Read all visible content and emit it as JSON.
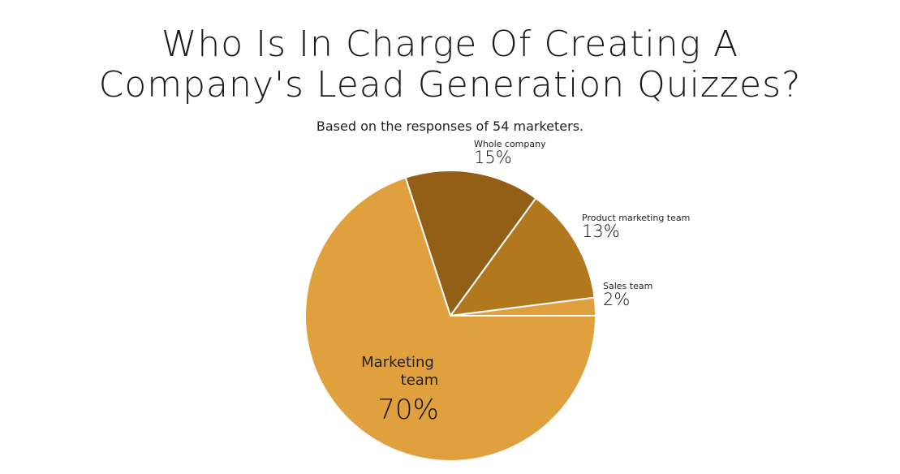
{
  "chart_data": {
    "type": "pie",
    "title_line1": "Who Is In Charge Of Creating A",
    "title_line2": "Company's Lead Generation Quizzes?",
    "subtitle": "Based on the responses of 54 marketers.",
    "unit": "%",
    "slices": [
      {
        "label": "Marketing team",
        "label_lines": [
          "Marketing",
          "team"
        ],
        "value": 70,
        "display": "70%",
        "color": "#E0A03E"
      },
      {
        "label": "Whole company",
        "label_lines": [
          "Whole company"
        ],
        "value": 15,
        "display": "15%",
        "color": "#935E16"
      },
      {
        "label": "Product marketing team",
        "label_lines": [
          "Product marketing team"
        ],
        "value": 13,
        "display": "13%",
        "color": "#B2781E"
      },
      {
        "label": "Sales team",
        "label_lines": [
          "Sales team"
        ],
        "value": 2,
        "display": "2%",
        "color": "#E0A03E"
      }
    ]
  }
}
